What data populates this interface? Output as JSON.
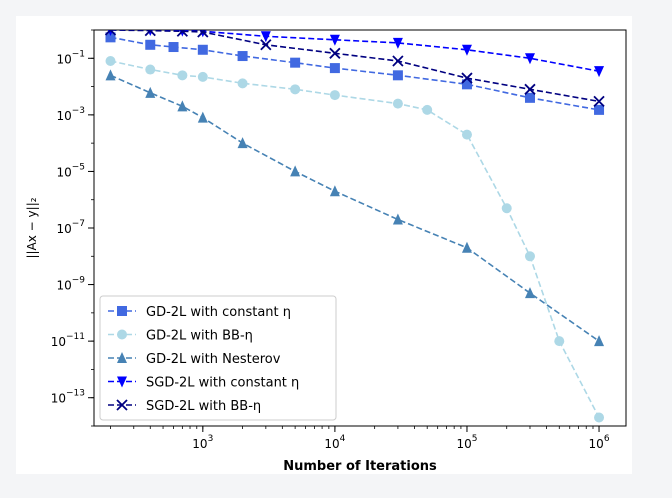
{
  "chart_data": {
    "type": "line",
    "xscale": "log",
    "yscale": "log",
    "xlim": [
      150,
      1600000
    ],
    "ylim": [
      1e-14,
      1.0
    ],
    "xlabel": "Number of Iterations",
    "ylabel": "||Ax − y||₂",
    "x_ticks": [
      {
        "value": 1000,
        "base": "10",
        "exp": "3"
      },
      {
        "value": 10000,
        "base": "10",
        "exp": "4"
      },
      {
        "value": 100000,
        "base": "10",
        "exp": "5"
      },
      {
        "value": 1000000,
        "base": "10",
        "exp": "6"
      }
    ],
    "y_ticks": [
      {
        "value": 0.1,
        "base": "10",
        "exp": "−1"
      },
      {
        "value": 0.001,
        "base": "10",
        "exp": "−3"
      },
      {
        "value": 1e-05,
        "base": "10",
        "exp": "−5"
      },
      {
        "value": 1e-07,
        "base": "10",
        "exp": "−7"
      },
      {
        "value": 1e-09,
        "base": "10",
        "exp": "−9"
      },
      {
        "value": 1e-11,
        "base": "10",
        "exp": "−11"
      },
      {
        "value": 1e-13,
        "base": "10",
        "exp": "−13"
      }
    ],
    "legend_position": "lower-left",
    "series": [
      {
        "name": "GD-2L with constant η",
        "color": "#4169e1",
        "marker": "square",
        "x": [
          200,
          400,
          600,
          1000,
          2000,
          5000,
          10000,
          30000,
          100000,
          300000,
          1000000
        ],
        "y": [
          0.55,
          0.3,
          0.25,
          0.2,
          0.12,
          0.07,
          0.045,
          0.025,
          0.012,
          0.004,
          0.0015
        ]
      },
      {
        "name": "GD-2L with BB-η",
        "color": "#add8e6",
        "marker": "circle",
        "x": [
          200,
          400,
          700,
          1000,
          2000,
          5000,
          10000,
          30000,
          50000,
          100000,
          200000,
          300000,
          500000,
          1000000
        ],
        "y": [
          0.08,
          0.04,
          0.025,
          0.022,
          0.013,
          0.008,
          0.005,
          0.0025,
          0.0015,
          0.0002,
          5e-07,
          1e-08,
          1e-11,
          2e-14
        ]
      },
      {
        "name": "GD-2L with Nesterov",
        "color": "#4682b4",
        "marker": "triangle-up",
        "x": [
          200,
          400,
          700,
          1000,
          2000,
          5000,
          10000,
          30000,
          100000,
          300000,
          1000000
        ],
        "y": [
          0.025,
          0.006,
          0.002,
          0.0008,
          0.0001,
          1e-05,
          2e-06,
          2e-07,
          2e-08,
          5e-10,
          1e-11
        ]
      },
      {
        "name": "SGD-2L with constant η",
        "color": "#0000ff",
        "marker": "triangle-down",
        "x": [
          200,
          400,
          700,
          1000,
          3000,
          10000,
          30000,
          100000,
          300000,
          1000000
        ],
        "y": [
          1.0,
          1.0,
          0.95,
          0.9,
          0.6,
          0.45,
          0.35,
          0.2,
          0.1,
          0.035
        ]
      },
      {
        "name": "SGD-2L with BB-η",
        "color": "#000080",
        "marker": "x",
        "x": [
          200,
          400,
          700,
          1000,
          3000,
          10000,
          30000,
          100000,
          300000,
          1000000
        ],
        "y": [
          1.0,
          0.95,
          0.9,
          0.85,
          0.3,
          0.15,
          0.08,
          0.02,
          0.008,
          0.003
        ]
      }
    ]
  }
}
